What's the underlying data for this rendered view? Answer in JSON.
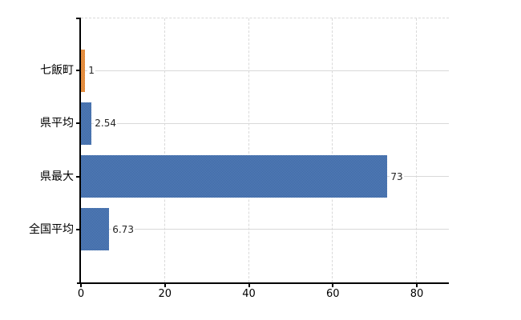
{
  "chart_data": {
    "type": "bar",
    "orientation": "horizontal",
    "categories": [
      "七飯町",
      "県平均",
      "県最大",
      "全国平均"
    ],
    "values": [
      1,
      2.54,
      73,
      6.73
    ],
    "value_labels": [
      "1",
      "2.54",
      "73",
      "6.73"
    ],
    "series": [
      {
        "name": "",
        "values": [
          1,
          2.54,
          73,
          6.73
        ]
      }
    ],
    "x_ticks": [
      0,
      20,
      40,
      60,
      80
    ],
    "xlim": [
      0,
      87.6
    ],
    "title": "",
    "xlabel": "",
    "ylabel": "",
    "legend_position": "none",
    "grid": {
      "vertical_style": "dashed",
      "horizontal_style": "solid",
      "top_border_style": "dashed"
    },
    "bar_colors": [
      "#EB8A33",
      "#3E6DB0",
      "#3E6DB0",
      "#3E6DB0"
    ],
    "colors": {
      "orange_bar": "#EB8A33",
      "blue_bar": "#3E6DB0",
      "axis": "#000000",
      "gridline": "#D9D9D9",
      "tick_label_text": "#000000",
      "value_label_text": "#262626",
      "background": "#FFFFFF"
    }
  }
}
